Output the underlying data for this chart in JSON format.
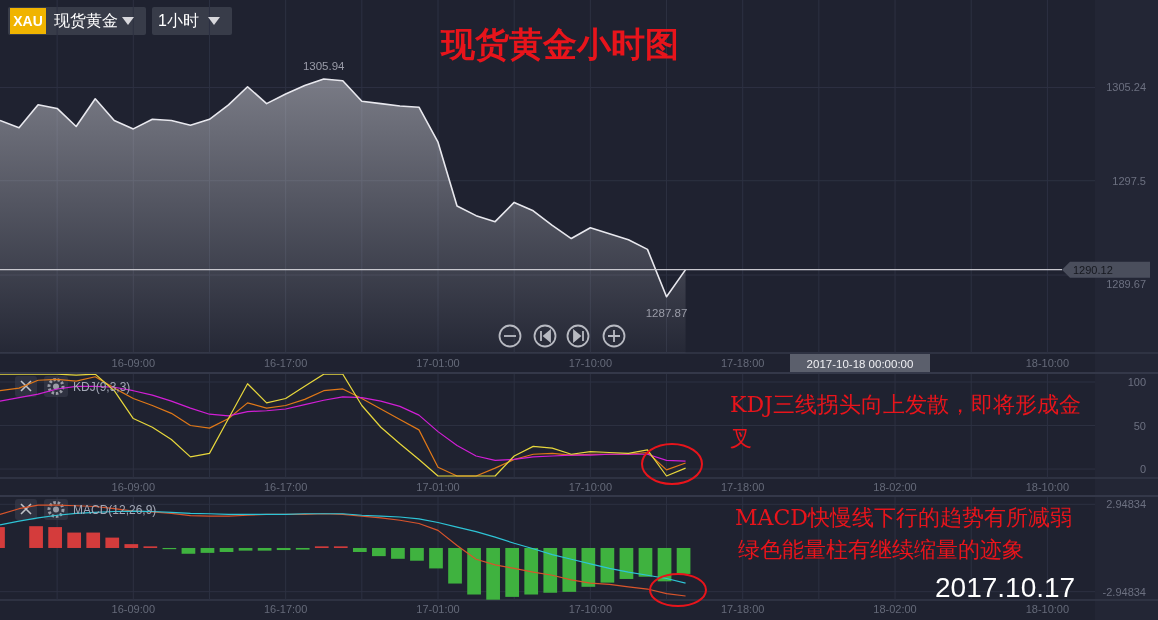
{
  "chart_data": [
    {
      "type": "area",
      "title": "现货黄金小时图",
      "categories": [
        null,
        null,
        null,
        null,
        null,
        null,
        null,
        "16-09:00",
        null,
        null,
        null,
        null,
        null,
        null,
        null,
        "16-17:00",
        null,
        null,
        null,
        null,
        null,
        null,
        null,
        "17-01:00",
        null,
        null,
        null,
        null,
        null,
        null,
        null,
        "17-10:00",
        null,
        null,
        null,
        null,
        null,
        null,
        null,
        "17-18:00",
        null,
        null,
        null,
        null,
        null,
        null,
        null,
        null,
        null,
        null,
        null,
        null,
        null,
        null,
        null,
        "18-10:00",
        null,
        null
      ],
      "series": [
        {
          "color": "#e8e8ee",
          "values": [
            1302.5,
            1301.9,
            1303.8,
            1303.5,
            1302.0,
            1304.3,
            1302.5,
            1301.8,
            1302.6,
            1302.5,
            1302.1,
            1302.6,
            1303.8,
            1305.3,
            1303.9,
            1304.7,
            1305.4,
            1305.94,
            1305.8,
            1304.1,
            1303.9,
            1303.7,
            1303.6,
            1300.7,
            1295.4,
            1294.6,
            1294.1,
            1295.7,
            1295.0,
            1293.8,
            1292.7,
            1293.6,
            1293.1,
            1292.6,
            1291.8,
            1287.87,
            1290.12,
            null,
            null,
            null,
            null,
            null,
            null,
            null,
            null,
            null,
            null,
            null,
            null,
            null,
            null,
            null,
            null,
            null,
            null,
            null,
            null,
            null
          ],
          "value_labels": [
            null,
            null,
            null,
            null,
            null,
            null,
            null,
            null,
            null,
            null,
            null,
            null,
            null,
            null,
            null,
            null,
            null,
            "1305.94",
            null,
            null,
            null,
            null,
            null,
            null,
            null,
            null,
            null,
            null,
            null,
            null,
            null,
            null,
            null,
            null,
            null,
            "1287.87",
            null,
            null,
            null,
            null,
            null,
            null,
            null,
            null,
            null,
            null,
            null,
            null,
            null,
            null,
            null,
            null,
            null,
            null,
            null,
            null,
            null,
            null
          ]
        }
      ],
      "ylim": [
        1283.2,
        1312.5
      ],
      "yticks": [
        1305.24,
        1297.5,
        1289.67
      ],
      "grid": true,
      "ref_lines": [
        {
          "axis": "y",
          "value": 1290.12,
          "label": "1290.12",
          "color": "#c8c8ce"
        }
      ],
      "annotations": [
        "XAU",
        "现货黄金",
        "1小时",
        "2017-10-18 00:00:00"
      ]
    },
    {
      "type": "line",
      "title": "KDJ(9,3,3)",
      "categories": [
        null,
        null,
        null,
        null,
        null,
        null,
        null,
        "16-09:00",
        null,
        null,
        null,
        null,
        null,
        null,
        null,
        "16-17:00",
        null,
        null,
        null,
        null,
        null,
        null,
        null,
        "17-01:00",
        null,
        null,
        null,
        null,
        null,
        null,
        null,
        "17-10:00",
        null,
        null,
        null,
        null,
        null,
        null,
        null,
        "17-18:00",
        null,
        null,
        null,
        null,
        null,
        null,
        null,
        "18-02:00",
        null,
        null,
        null,
        null,
        null,
        null,
        null,
        "18-10:00",
        null,
        null
      ],
      "series": [
        {
          "color": "#e07818",
          "values": [
            90,
            93,
            102,
            103,
            101,
            106,
            93,
            81,
            73,
            64,
            50,
            47,
            58,
            76,
            70,
            73,
            80,
            90,
            92,
            81,
            69,
            57,
            45,
            2,
            -8,
            -8,
            1,
            11,
            17,
            18,
            16,
            17,
            17,
            17,
            19,
            -1,
            7,
            null,
            null,
            null,
            null,
            null,
            null,
            null,
            null,
            null,
            null,
            null,
            null,
            null,
            null,
            null,
            null,
            null,
            null,
            null,
            null,
            null
          ]
        },
        {
          "color": "#d21ed6",
          "values": [
            78,
            82,
            86,
            92,
            95,
            95,
            94,
            90,
            85,
            78,
            70,
            63,
            61,
            66,
            67,
            69,
            74,
            79,
            83,
            82,
            78,
            72,
            62,
            43,
            27,
            15,
            10,
            11,
            14,
            15,
            16,
            16,
            17,
            17,
            17,
            10,
            9,
            null,
            null,
            null,
            null,
            null,
            null,
            null,
            null,
            null,
            null,
            null,
            null,
            null,
            null,
            null,
            null,
            null,
            null,
            null,
            null,
            null
          ]
        },
        {
          "color": "#e8d83c",
          "values": [
            109,
            109,
            109,
            109,
            108,
            109,
            90,
            58,
            48,
            34,
            14,
            18,
            58,
            98,
            76,
            81,
            95,
            109,
            109,
            73,
            48,
            29,
            11,
            -8,
            -8,
            -8,
            -8,
            15,
            26,
            24,
            17,
            20,
            19,
            18,
            22,
            -8,
            1,
            null,
            null,
            null,
            null,
            null,
            null,
            null,
            null,
            null,
            null,
            null,
            null,
            null,
            null,
            null,
            null,
            null,
            null,
            null,
            null,
            null
          ]
        }
      ],
      "ylim": [
        -10.3,
        109.2
      ],
      "yticks": [
        100,
        50,
        0
      ],
      "grid": true,
      "annotations": [
        "KDJ三线拐头向上发散，即将形成金叉"
      ]
    },
    {
      "type": "line",
      "title": "MACD(12,26,9)",
      "categories": [
        null,
        null,
        null,
        null,
        null,
        null,
        null,
        "16-09:00",
        null,
        null,
        null,
        null,
        null,
        null,
        null,
        "16-17:00",
        null,
        null,
        null,
        null,
        null,
        null,
        null,
        "17-01:00",
        null,
        null,
        null,
        null,
        null,
        null,
        null,
        "17-10:00",
        null,
        null,
        null,
        null,
        null,
        null,
        null,
        "17-18:00",
        null,
        null,
        null,
        null,
        null,
        null,
        null,
        "18-02:00",
        null,
        null,
        null,
        null,
        null,
        null,
        null,
        "18-10:00",
        null,
        null
      ],
      "series": [
        {
          "type": "bar",
          "values": [
            1.41,
            null,
            1.47,
            1.41,
            1.04,
            1.04,
            0.7,
            0.26,
            0.11,
            -0.08,
            -0.39,
            -0.33,
            -0.27,
            -0.18,
            -0.18,
            -0.14,
            -0.11,
            0.11,
            0.11,
            -0.27,
            -0.55,
            -0.73,
            -0.86,
            -1.38,
            -2.4,
            -3.14,
            -3.49,
            -3.3,
            -3.14,
            -3.02,
            -2.96,
            -2.62,
            -2.34,
            -2.09,
            -1.94,
            -2.25,
            -1.75,
            null,
            null,
            null,
            null,
            null,
            null,
            null,
            null,
            null,
            null,
            null,
            null,
            null,
            null,
            null,
            null,
            null,
            null,
            null,
            null,
            null
          ],
          "colors": [
            "#d43c3c",
            null,
            "#d43c3c",
            "#d43c3c",
            "#d43c3c",
            "#d43c3c",
            "#d43c3c",
            "#d43c3c",
            "#d43c3c",
            "#3fb23f",
            "#3fb23f",
            "#3fb23f",
            "#3fb23f",
            "#3fb23f",
            "#3fb23f",
            "#3fb23f",
            "#3fb23f",
            "#d43c3c",
            "#d43c3c",
            "#3fb23f",
            "#3fb23f",
            "#3fb23f",
            "#3fb23f",
            "#3fb23f",
            "#3fb23f",
            "#3fb23f",
            "#3fb23f",
            "#3fb23f",
            "#3fb23f",
            "#3fb23f",
            "#3fb23f",
            "#3fb23f",
            "#3fb23f",
            "#3fb23f",
            "#3fb23f",
            "#3fb23f",
            "#3fb23f",
            null,
            null,
            null,
            null,
            null,
            null,
            null,
            null,
            null,
            null,
            null,
            null,
            null,
            null,
            null,
            null,
            null,
            null,
            null,
            null,
            null
          ]
        },
        {
          "type": "line",
          "color": "#d9542b",
          "values": [
            2.27,
            2.65,
            2.89,
            2.89,
            2.85,
            2.8,
            2.65,
            2.49,
            2.43,
            2.33,
            2.18,
            2.15,
            2.15,
            2.21,
            2.27,
            2.27,
            2.27,
            2.31,
            2.27,
            2.15,
            2.03,
            1.87,
            1.65,
            1.19,
            0.17,
            -0.76,
            -1.14,
            -1.38,
            -1.63,
            -1.84,
            -2.15,
            -2.37,
            -2.46,
            -2.62,
            -2.77,
            -3.08,
            -3.24,
            null,
            null,
            null,
            null,
            null,
            null,
            null,
            null,
            null,
            null,
            null,
            null,
            null,
            null,
            null,
            null,
            null,
            null,
            null,
            null,
            null
          ]
        },
        {
          "type": "line",
          "color": "#2ec4d6",
          "values": [
            1.56,
            1.81,
            2.03,
            2.21,
            2.33,
            2.4,
            2.46,
            2.49,
            2.46,
            2.4,
            2.33,
            2.31,
            2.27,
            2.27,
            2.27,
            2.27,
            2.31,
            2.31,
            2.31,
            2.21,
            2.15,
            2.09,
            1.96,
            1.72,
            1.41,
            1.1,
            0.73,
            0.32,
            -0.05,
            -0.45,
            -0.76,
            -1.07,
            -1.38,
            -1.63,
            -1.84,
            -2.06,
            -2.37,
            null,
            null,
            null,
            null,
            null,
            null,
            null,
            null,
            null,
            null,
            null,
            null,
            null,
            null,
            null,
            null,
            null,
            null,
            null,
            null,
            null
          ]
        }
      ],
      "ylim": [
        -3.51,
        3.44
      ],
      "yticks": [
        2.94834,
        -2.94834
      ],
      "grid": true,
      "annotations": [
        "MACD快慢线下行的趋势有所减弱",
        "绿色能量柱有继续缩量的迹象",
        "2017.10.17"
      ]
    }
  ]
}
